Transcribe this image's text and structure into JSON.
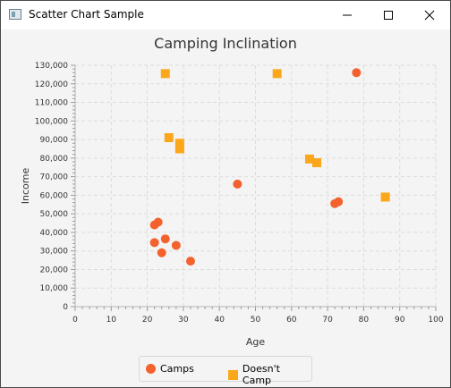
{
  "window": {
    "title": "Scatter Chart Sample",
    "minimize_icon": "minimize-icon",
    "maximize_icon": "maximize-icon",
    "close_icon": "close-icon"
  },
  "chart_data": {
    "type": "scatter",
    "title": "Camping Inclination",
    "xlabel": "Age",
    "ylabel": "Income",
    "xlim": [
      0,
      100
    ],
    "ylim": [
      0,
      130000
    ],
    "x_ticks": [
      "0",
      "10",
      "20",
      "30",
      "40",
      "50",
      "60",
      "70",
      "80",
      "90",
      "100"
    ],
    "y_ticks": [
      "0",
      "10,000",
      "20,000",
      "30,000",
      "40,000",
      "50,000",
      "60,000",
      "70,000",
      "80,000",
      "90,000",
      "100,000",
      "110,000",
      "120,000",
      "130,000"
    ],
    "grid": true,
    "legend_position": "bottom",
    "series": [
      {
        "name": "Camps",
        "marker": "circle",
        "color": "#f3622d",
        "points": [
          {
            "x": 22,
            "y": 44000
          },
          {
            "x": 23,
            "y": 45500
          },
          {
            "x": 22,
            "y": 34500
          },
          {
            "x": 25,
            "y": 36500
          },
          {
            "x": 24,
            "y": 29000
          },
          {
            "x": 28,
            "y": 33000
          },
          {
            "x": 32,
            "y": 24500
          },
          {
            "x": 45,
            "y": 66000
          },
          {
            "x": 72,
            "y": 55500
          },
          {
            "x": 73,
            "y": 56500
          },
          {
            "x": 78,
            "y": 126000
          }
        ]
      },
      {
        "name": "Doesn't Camp",
        "marker": "square",
        "color": "#fba71b",
        "points": [
          {
            "x": 25,
            "y": 125500
          },
          {
            "x": 56,
            "y": 125500
          },
          {
            "x": 26,
            "y": 91000
          },
          {
            "x": 29,
            "y": 88000
          },
          {
            "x": 29,
            "y": 85000
          },
          {
            "x": 65,
            "y": 79500
          },
          {
            "x": 67,
            "y": 77500
          },
          {
            "x": 86,
            "y": 59000
          }
        ]
      }
    ]
  }
}
